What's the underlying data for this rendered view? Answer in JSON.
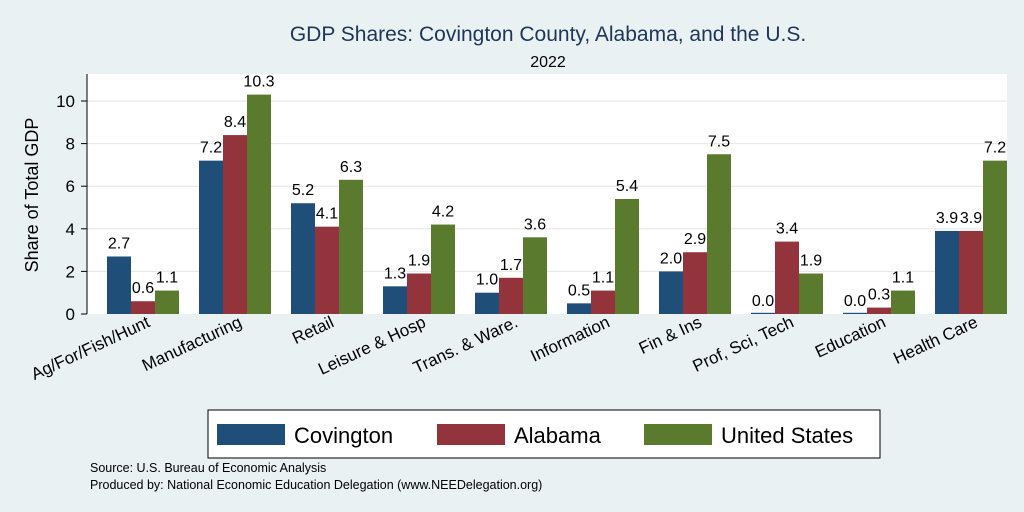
{
  "chart_data": {
    "type": "bar",
    "title": "GDP Shares: Covington County, Alabama, and the U.S.",
    "subtitle": "2022",
    "ylabel": "Share of Total GDP",
    "xlabel": "",
    "ylim": [
      0,
      11
    ],
    "yticks": [
      0,
      2,
      4,
      6,
      8,
      10
    ],
    "grid": true,
    "legend_position": "bottom",
    "categories": [
      "Ag/For/Fish/Hunt",
      "Manufacturing",
      "Retail",
      "Leisure & Hosp",
      "Trans. & Ware.",
      "Information",
      "Fin & Ins",
      "Prof, Sci, Tech",
      "Education",
      "Health Care"
    ],
    "series": [
      {
        "name": "Covington",
        "color": "#1f4e79",
        "values": [
          2.7,
          7.2,
          5.2,
          1.3,
          1.0,
          0.5,
          2.0,
          0.0,
          0.0,
          3.9
        ],
        "labels": [
          "2.7",
          "7.2",
          "5.2",
          "1.3",
          "1.0",
          "0.5",
          "2.0",
          "0.0",
          "0.0",
          "3.9"
        ]
      },
      {
        "name": "Alabama",
        "color": "#93333b",
        "values": [
          0.6,
          8.4,
          4.1,
          1.9,
          1.7,
          1.1,
          2.9,
          3.4,
          0.3,
          3.9
        ],
        "labels": [
          "0.6",
          "8.4",
          "4.1",
          "1.9",
          "1.7",
          "1.1",
          "2.9",
          "3.4",
          "0.3",
          "3.9"
        ]
      },
      {
        "name": "United States",
        "color": "#5a7a2e",
        "values": [
          1.1,
          10.3,
          6.3,
          4.2,
          3.6,
          5.4,
          7.5,
          1.9,
          1.1,
          7.2
        ],
        "labels": [
          "1.1",
          "10.3",
          "6.3",
          "4.2",
          "3.6",
          "5.4",
          "7.5",
          "1.9",
          "1.1",
          "7.2"
        ]
      }
    ]
  },
  "notes": {
    "source": "Source: U.S. Bureau of Economic Analysis",
    "produced": "Produced by: National Economic Education Delegation (www.NEEDelegation.org)"
  }
}
